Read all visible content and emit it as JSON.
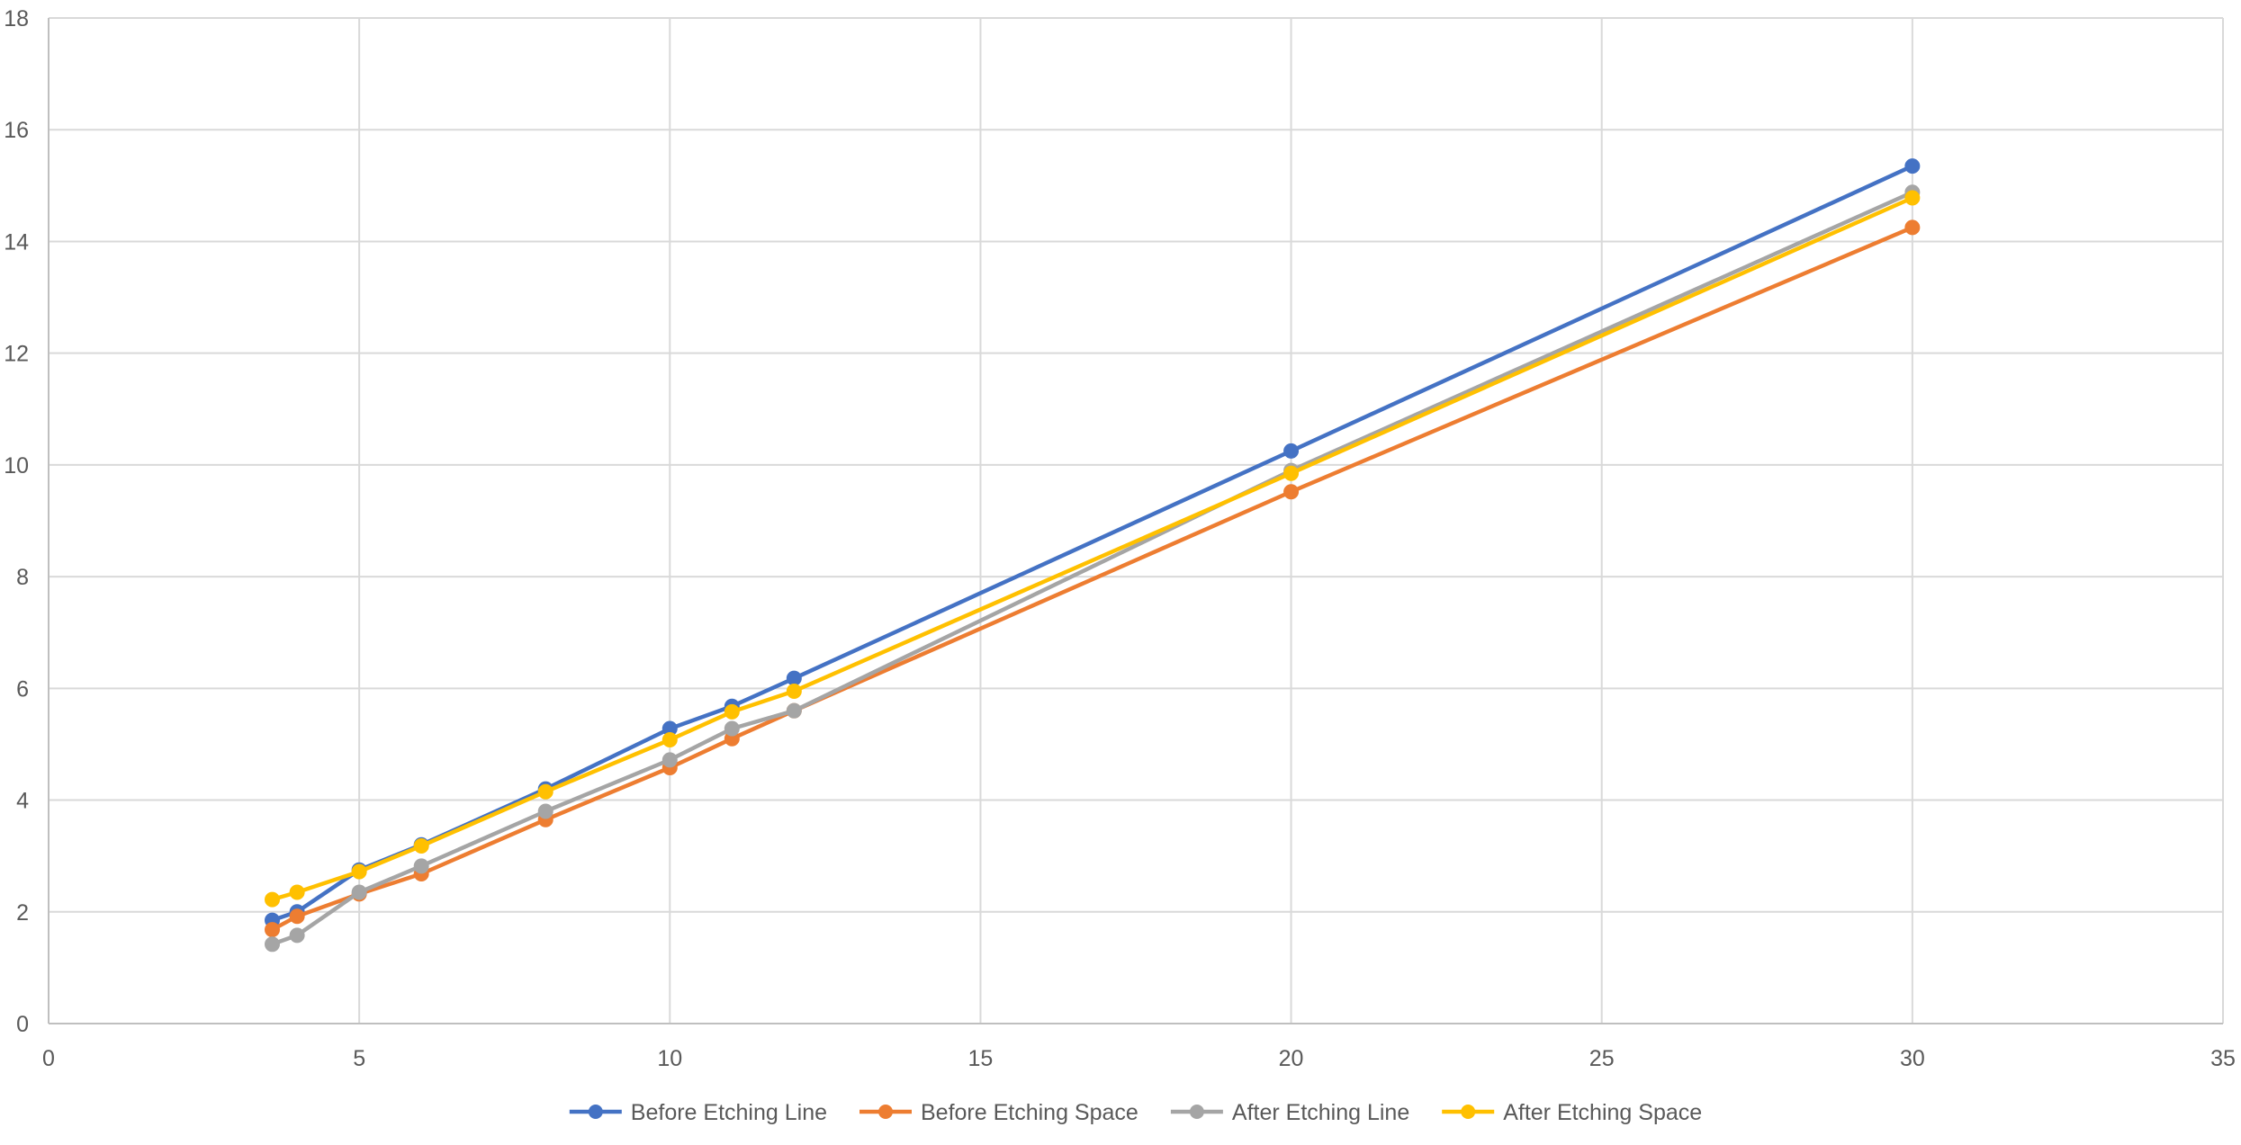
{
  "chart_data": {
    "type": "scatter",
    "title": "",
    "xlabel": "",
    "ylabel": "",
    "xlim": [
      0,
      35
    ],
    "ylim": [
      0,
      18
    ],
    "x_ticks": [
      0,
      5,
      10,
      15,
      20,
      25,
      30,
      35
    ],
    "y_ticks": [
      0,
      2,
      4,
      6,
      8,
      10,
      12,
      14,
      16,
      18
    ],
    "grid": true,
    "legend_position": "bottom",
    "series": [
      {
        "name": "Before Etching Line",
        "color": "#4472C4",
        "points": [
          [
            3.6,
            1.85
          ],
          [
            4,
            2.0
          ],
          [
            5,
            2.75
          ],
          [
            6,
            3.2
          ],
          [
            8,
            4.2
          ],
          [
            10,
            5.28
          ],
          [
            11,
            5.68
          ],
          [
            12,
            6.18
          ],
          [
            20,
            10.25
          ],
          [
            30,
            15.35
          ]
        ]
      },
      {
        "name": "Before Etching Space",
        "color": "#ED7D31",
        "points": [
          [
            3.6,
            1.68
          ],
          [
            4,
            1.92
          ],
          [
            5,
            2.32
          ],
          [
            6,
            2.68
          ],
          [
            8,
            3.65
          ],
          [
            10,
            4.58
          ],
          [
            11,
            5.1
          ],
          [
            12,
            5.6
          ],
          [
            20,
            9.52
          ],
          [
            30,
            14.25
          ]
        ]
      },
      {
        "name": "After Etching Line",
        "color": "#A5A5A5",
        "points": [
          [
            3.6,
            1.42
          ],
          [
            4,
            1.58
          ],
          [
            5,
            2.35
          ],
          [
            6,
            2.82
          ],
          [
            8,
            3.8
          ],
          [
            10,
            4.72
          ],
          [
            11,
            5.28
          ],
          [
            12,
            5.6
          ],
          [
            20,
            9.9
          ],
          [
            30,
            14.88
          ]
        ]
      },
      {
        "name": "After Etching Space",
        "color": "#FFC000",
        "points": [
          [
            3.6,
            2.22
          ],
          [
            4,
            2.35
          ],
          [
            5,
            2.72
          ],
          [
            6,
            3.18
          ],
          [
            8,
            4.15
          ],
          [
            10,
            5.08
          ],
          [
            11,
            5.58
          ],
          [
            12,
            5.95
          ],
          [
            20,
            9.85
          ],
          [
            30,
            14.78
          ]
        ]
      }
    ]
  }
}
